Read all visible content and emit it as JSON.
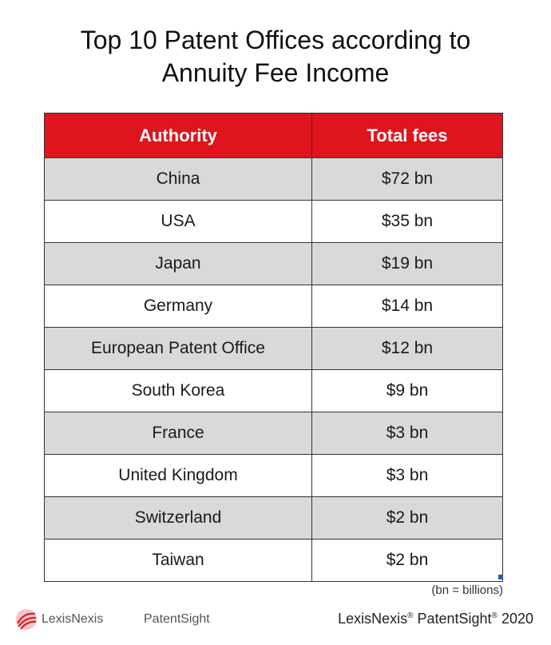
{
  "title_line1": "Top 10 Patent Offices according to",
  "title_line2": "Annuity Fee Income",
  "chart_data": {
    "type": "table",
    "columns": [
      "Authority",
      "Total fees"
    ],
    "rows": [
      {
        "authority": "China",
        "fees": "$72 bn",
        "value": 72
      },
      {
        "authority": "USA",
        "fees": "$35 bn",
        "value": 35
      },
      {
        "authority": "Japan",
        "fees": "$19 bn",
        "value": 19
      },
      {
        "authority": "Germany",
        "fees": "$14 bn",
        "value": 14
      },
      {
        "authority": "European Patent Office",
        "fees": "$12 bn",
        "value": 12
      },
      {
        "authority": "South Korea",
        "fees": "$9 bn",
        "value": 9
      },
      {
        "authority": "France",
        "fees": "$3 bn",
        "value": 3
      },
      {
        "authority": "United Kingdom",
        "fees": "$3 bn",
        "value": 3
      },
      {
        "authority": "Switzerland",
        "fees": "$2 bn",
        "value": 2
      },
      {
        "authority": "Taiwan",
        "fees": "$2 bn",
        "value": 2
      }
    ],
    "note": "(bn = billions)"
  },
  "colors": {
    "header_bg": "#e0141d",
    "stripe_bg": "#d9d9d9",
    "logo_red": "#d81e2c"
  },
  "footer": {
    "lexis_logo_text": "LexisNexis",
    "patentsight_logo_text": "PatentSight",
    "credit_lexis": "LexisNexis",
    "credit_patentsight": "PatentSight",
    "credit_reg": "®",
    "credit_year": "2020"
  }
}
